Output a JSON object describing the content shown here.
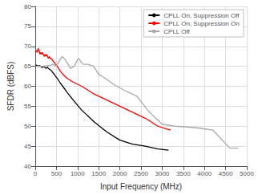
{
  "chart_data": {
    "type": "line",
    "xlabel": "Input Frequency (MHz)",
    "ylabel": "SFDR (dBFS)",
    "xlim": [
      0,
      5000
    ],
    "ylim": [
      40,
      80
    ],
    "xticks": [
      0,
      500,
      1000,
      1500,
      2000,
      2500,
      3000,
      3500,
      4000,
      4500,
      5000
    ],
    "yticks": [
      40,
      45,
      50,
      55,
      60,
      65,
      70,
      75,
      80
    ],
    "grid": true,
    "legend": "upper right",
    "series": [
      {
        "name": "CPLL On, Suppression Off",
        "color": "black",
        "x": [
          10,
          30,
          50,
          70,
          90,
          110,
          130,
          150,
          170,
          190,
          210,
          230,
          250,
          270,
          290,
          310,
          330,
          350,
          370,
          390,
          410,
          430,
          450,
          480,
          520,
          580,
          650,
          750,
          900,
          1100,
          1400,
          1700,
          2000,
          2300,
          2600,
          2900,
          3150
        ],
        "values": [
          65.2,
          65.3,
          65.1,
          65.0,
          65.2,
          65.1,
          65.0,
          64.8,
          64.7,
          64.9,
          65.0,
          64.7,
          64.5,
          64.6,
          64.8,
          64.5,
          64.3,
          64.2,
          64.0,
          63.8,
          63.5,
          63.2,
          63.0,
          62.5,
          62.0,
          61.0,
          60.0,
          58.5,
          56.5,
          54.0,
          51.0,
          48.5,
          46.5,
          45.5,
          45.0,
          44.3,
          44.0
        ]
      },
      {
        "name": "CPLL On, Suppression On",
        "color": "red",
        "x": [
          10,
          30,
          50,
          70,
          90,
          110,
          130,
          150,
          170,
          190,
          210,
          230,
          250,
          270,
          290,
          310,
          330,
          350,
          370,
          390,
          410,
          430,
          450,
          480,
          520,
          580,
          650,
          750,
          900,
          1100,
          1400,
          1700,
          2000,
          2300,
          2600,
          2900,
          3100,
          3200
        ],
        "values": [
          68.5,
          69.0,
          68.5,
          69.5,
          69.0,
          68.0,
          68.5,
          68.0,
          68.5,
          68.0,
          67.5,
          68.0,
          67.5,
          68.0,
          67.5,
          67.0,
          67.5,
          67.0,
          67.0,
          66.8,
          66.5,
          66.2,
          66.0,
          65.5,
          65.0,
          64.0,
          63.0,
          62.0,
          61.0,
          60.0,
          58.0,
          56.5,
          55.0,
          53.5,
          52.0,
          50.0,
          49.3,
          49.0
        ]
      },
      {
        "name": "CPLL Off",
        "color": "#aaaaaa",
        "x": [
          10,
          100,
          200,
          300,
          380,
          420,
          460,
          500,
          540,
          580,
          630,
          680,
          750,
          830,
          920,
          1020,
          1130,
          1250,
          1380,
          1500,
          1650,
          1850,
          2100,
          2400,
          2700,
          3000,
          3300,
          3600,
          3900,
          4200,
          4600,
          4800
        ],
        "values": [
          65.0,
          65.0,
          65.0,
          65.2,
          65.3,
          65.5,
          65.2,
          65.0,
          65.8,
          66.5,
          67.5,
          67.0,
          66.0,
          64.5,
          65.0,
          67.0,
          65.5,
          65.5,
          65.0,
          63.0,
          62.0,
          60.5,
          59.0,
          57.5,
          53.5,
          50.5,
          50.0,
          49.8,
          49.5,
          49.0,
          44.5,
          44.5
        ]
      }
    ]
  }
}
